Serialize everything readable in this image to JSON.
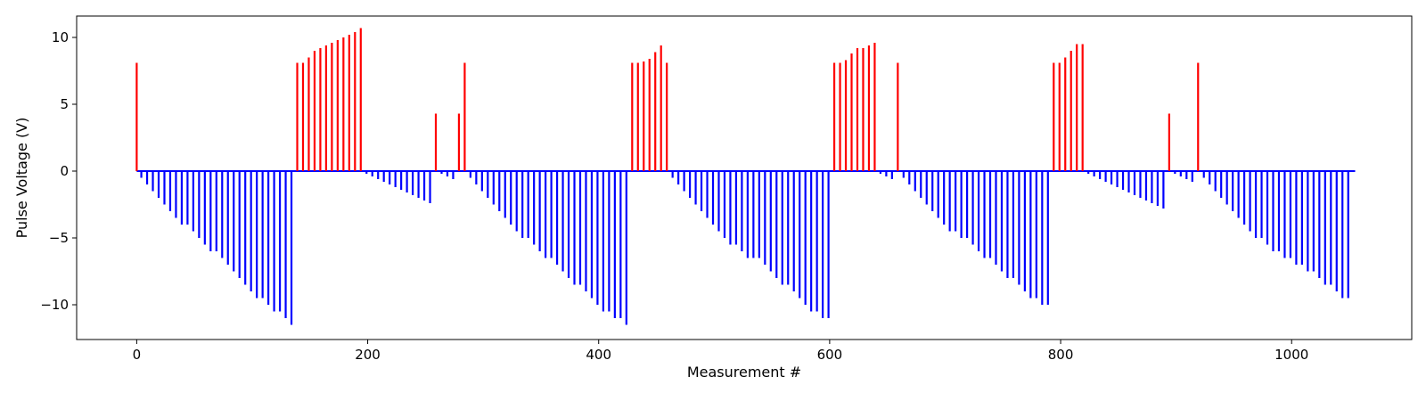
{
  "chart_data": {
    "type": "bar",
    "title": "",
    "xlabel": "Measurement #",
    "ylabel": "Pulse Voltage (V)",
    "xlim": [
      -52,
      1104
    ],
    "ylim": [
      -12.6,
      11.6
    ],
    "xticks": [
      0,
      200,
      400,
      600,
      800,
      1000
    ],
    "yticks": [
      -10,
      -5,
      0,
      5,
      10
    ],
    "grid": false,
    "legend": "none",
    "baseline": {
      "x_start": 0,
      "x_end": 1055,
      "color": "#0000ff"
    },
    "series": [
      {
        "color": "#ff0000",
        "points": [
          [
            0,
            8.1
          ],
          [
            139,
            8.1
          ],
          [
            144,
            8.1
          ],
          [
            149,
            8.5
          ],
          [
            154,
            9.0
          ],
          [
            159,
            9.2
          ],
          [
            164,
            9.4
          ],
          [
            169,
            9.6
          ],
          [
            174,
            9.8
          ],
          [
            179,
            10.0
          ],
          [
            184,
            10.2
          ],
          [
            189,
            10.4
          ],
          [
            194,
            10.7
          ],
          [
            259,
            4.3
          ],
          [
            279,
            4.3
          ],
          [
            284,
            8.1
          ],
          [
            429,
            8.1
          ],
          [
            434,
            8.1
          ],
          [
            439,
            8.2
          ],
          [
            444,
            8.4
          ],
          [
            449,
            8.9
          ],
          [
            454,
            9.4
          ],
          [
            459,
            8.1
          ],
          [
            604,
            8.1
          ],
          [
            609,
            8.1
          ],
          [
            614,
            8.3
          ],
          [
            619,
            8.8
          ],
          [
            624,
            9.2
          ],
          [
            629,
            9.2
          ],
          [
            634,
            9.4
          ],
          [
            639,
            9.6
          ],
          [
            659,
            8.1
          ],
          [
            794,
            8.1
          ],
          [
            799,
            8.1
          ],
          [
            804,
            8.5
          ],
          [
            809,
            9.0
          ],
          [
            814,
            9.5
          ],
          [
            819,
            9.5
          ],
          [
            894,
            4.3
          ],
          [
            919,
            8.1
          ]
        ]
      },
      {
        "color": "#0000ff",
        "points": [
          [
            4,
            -0.5
          ],
          [
            9,
            -1.0
          ],
          [
            14,
            -1.5
          ],
          [
            19,
            -2.0
          ],
          [
            24,
            -2.5
          ],
          [
            29,
            -3.0
          ],
          [
            34,
            -3.5
          ],
          [
            39,
            -4.0
          ],
          [
            44,
            -4.0
          ],
          [
            49,
            -4.5
          ],
          [
            54,
            -5.0
          ],
          [
            59,
            -5.5
          ],
          [
            64,
            -6.0
          ],
          [
            69,
            -6.0
          ],
          [
            74,
            -6.5
          ],
          [
            79,
            -7.0
          ],
          [
            84,
            -7.5
          ],
          [
            89,
            -8.0
          ],
          [
            94,
            -8.5
          ],
          [
            99,
            -9.0
          ],
          [
            104,
            -9.5
          ],
          [
            109,
            -9.5
          ],
          [
            114,
            -10.0
          ],
          [
            119,
            -10.5
          ],
          [
            124,
            -10.5
          ],
          [
            129,
            -11.0
          ],
          [
            134,
            -11.5
          ],
          [
            199,
            -0.2
          ],
          [
            204,
            -0.4
          ],
          [
            209,
            -0.6
          ],
          [
            214,
            -0.8
          ],
          [
            219,
            -1.0
          ],
          [
            224,
            -1.2
          ],
          [
            229,
            -1.4
          ],
          [
            234,
            -1.6
          ],
          [
            239,
            -1.8
          ],
          [
            244,
            -2.0
          ],
          [
            249,
            -2.2
          ],
          [
            254,
            -2.4
          ],
          [
            264,
            -0.2
          ],
          [
            269,
            -0.4
          ],
          [
            274,
            -0.6
          ],
          [
            289,
            -0.5
          ],
          [
            294,
            -1.0
          ],
          [
            299,
            -1.5
          ],
          [
            304,
            -2.0
          ],
          [
            309,
            -2.5
          ],
          [
            314,
            -3.0
          ],
          [
            319,
            -3.5
          ],
          [
            324,
            -4.0
          ],
          [
            329,
            -4.5
          ],
          [
            334,
            -5.0
          ],
          [
            339,
            -5.0
          ],
          [
            344,
            -5.5
          ],
          [
            349,
            -6.0
          ],
          [
            354,
            -6.5
          ],
          [
            359,
            -6.5
          ],
          [
            364,
            -7.0
          ],
          [
            369,
            -7.5
          ],
          [
            374,
            -8.0
          ],
          [
            379,
            -8.5
          ],
          [
            384,
            -8.5
          ],
          [
            389,
            -9.0
          ],
          [
            394,
            -9.5
          ],
          [
            399,
            -10.0
          ],
          [
            404,
            -10.5
          ],
          [
            409,
            -10.5
          ],
          [
            414,
            -11.0
          ],
          [
            419,
            -11.0
          ],
          [
            424,
            -11.5
          ],
          [
            464,
            -0.5
          ],
          [
            469,
            -1.0
          ],
          [
            474,
            -1.5
          ],
          [
            479,
            -2.0
          ],
          [
            484,
            -2.5
          ],
          [
            489,
            -3.0
          ],
          [
            494,
            -3.5
          ],
          [
            499,
            -4.0
          ],
          [
            504,
            -4.5
          ],
          [
            509,
            -5.0
          ],
          [
            514,
            -5.5
          ],
          [
            519,
            -5.5
          ],
          [
            524,
            -6.0
          ],
          [
            529,
            -6.5
          ],
          [
            534,
            -6.5
          ],
          [
            539,
            -6.5
          ],
          [
            544,
            -7.0
          ],
          [
            549,
            -7.5
          ],
          [
            554,
            -8.0
          ],
          [
            559,
            -8.5
          ],
          [
            564,
            -8.5
          ],
          [
            569,
            -9.0
          ],
          [
            574,
            -9.5
          ],
          [
            579,
            -10.0
          ],
          [
            584,
            -10.5
          ],
          [
            589,
            -10.5
          ],
          [
            594,
            -11.0
          ],
          [
            599,
            -11.0
          ],
          [
            644,
            -0.2
          ],
          [
            649,
            -0.4
          ],
          [
            654,
            -0.6
          ],
          [
            664,
            -0.5
          ],
          [
            669,
            -1.0
          ],
          [
            674,
            -1.5
          ],
          [
            679,
            -2.0
          ],
          [
            684,
            -2.5
          ],
          [
            689,
            -3.0
          ],
          [
            694,
            -3.5
          ],
          [
            699,
            -4.0
          ],
          [
            704,
            -4.5
          ],
          [
            709,
            -4.5
          ],
          [
            714,
            -5.0
          ],
          [
            719,
            -5.0
          ],
          [
            724,
            -5.5
          ],
          [
            729,
            -6.0
          ],
          [
            734,
            -6.5
          ],
          [
            739,
            -6.5
          ],
          [
            744,
            -7.0
          ],
          [
            749,
            -7.5
          ],
          [
            754,
            -8.0
          ],
          [
            759,
            -8.0
          ],
          [
            764,
            -8.5
          ],
          [
            769,
            -9.0
          ],
          [
            774,
            -9.5
          ],
          [
            779,
            -9.5
          ],
          [
            784,
            -10.0
          ],
          [
            789,
            -10.0
          ],
          [
            824,
            -0.2
          ],
          [
            829,
            -0.4
          ],
          [
            834,
            -0.6
          ],
          [
            839,
            -0.8
          ],
          [
            844,
            -1.0
          ],
          [
            849,
            -1.2
          ],
          [
            854,
            -1.4
          ],
          [
            859,
            -1.6
          ],
          [
            864,
            -1.8
          ],
          [
            869,
            -2.0
          ],
          [
            874,
            -2.2
          ],
          [
            879,
            -2.4
          ],
          [
            884,
            -2.6
          ],
          [
            889,
            -2.8
          ],
          [
            899,
            -0.2
          ],
          [
            904,
            -0.4
          ],
          [
            909,
            -0.6
          ],
          [
            914,
            -0.8
          ],
          [
            924,
            -0.5
          ],
          [
            929,
            -1.0
          ],
          [
            934,
            -1.5
          ],
          [
            939,
            -2.0
          ],
          [
            944,
            -2.5
          ],
          [
            949,
            -3.0
          ],
          [
            954,
            -3.5
          ],
          [
            959,
            -4.0
          ],
          [
            964,
            -4.5
          ],
          [
            969,
            -5.0
          ],
          [
            974,
            -5.0
          ],
          [
            979,
            -5.5
          ],
          [
            984,
            -6.0
          ],
          [
            989,
            -6.0
          ],
          [
            994,
            -6.5
          ],
          [
            999,
            -6.5
          ],
          [
            1004,
            -7.0
          ],
          [
            1009,
            -7.0
          ],
          [
            1014,
            -7.5
          ],
          [
            1019,
            -7.5
          ],
          [
            1024,
            -8.0
          ],
          [
            1029,
            -8.5
          ],
          [
            1034,
            -8.5
          ],
          [
            1039,
            -9.0
          ],
          [
            1044,
            -9.5
          ],
          [
            1049,
            -9.5
          ]
        ]
      }
    ]
  }
}
